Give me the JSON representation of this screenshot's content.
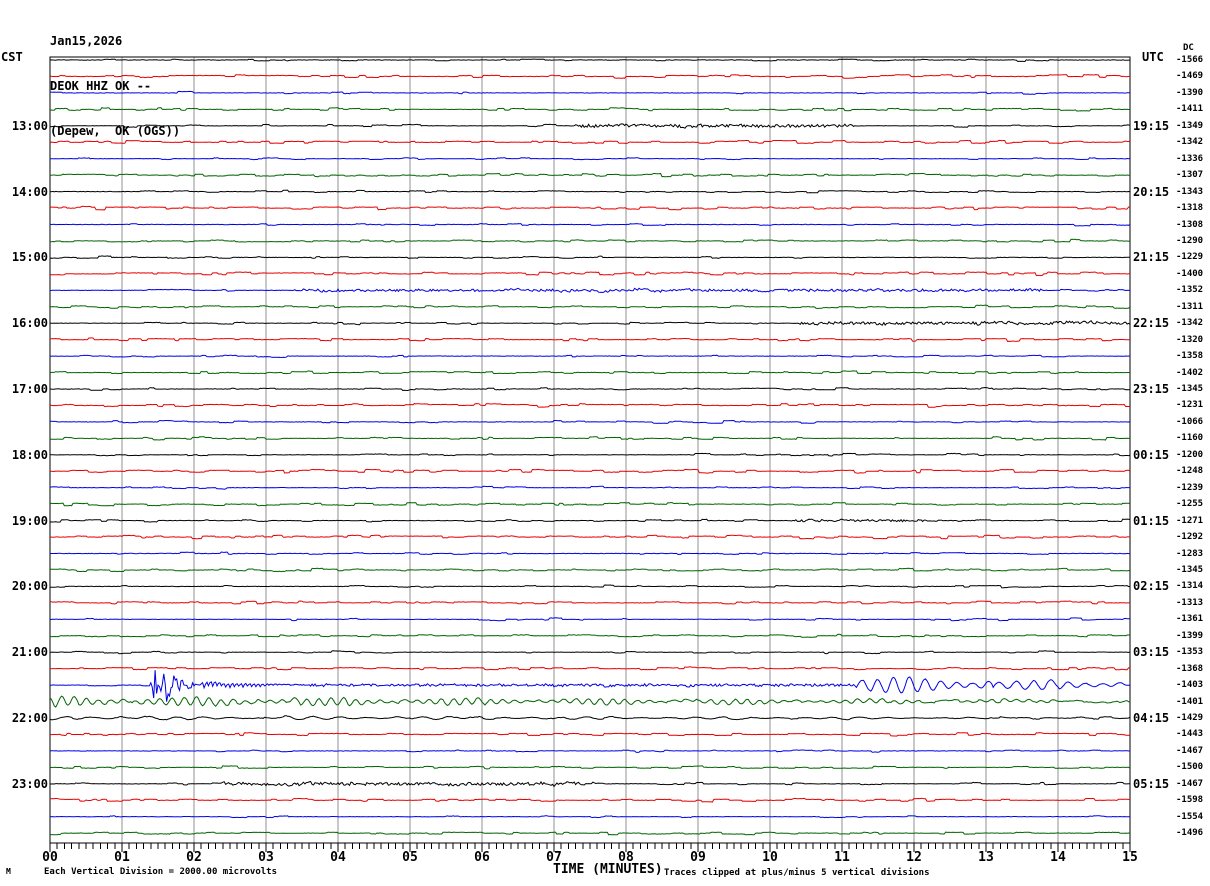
{
  "header": {
    "date": "Jan15,2026",
    "station": "DEOK HHZ OK --",
    "location": "(Depew,  OK (OGS))"
  },
  "axes": {
    "left_label": "CST",
    "right_label": "UTC",
    "dc_label": "DC",
    "x_label": "TIME (MINUTES)"
  },
  "footer": {
    "mark": "M",
    "scale_note": "Each Vertical Division = 2000.00 microvolts",
    "clip_note": "Traces clipped at plus/minus 5 vertical divisions"
  },
  "chart_data": {
    "type": "line",
    "subtype": "seismogram-helicorder",
    "title": "DEOK HHZ OK -- (Depew, OK (OGS)) Jan15,2026",
    "x_axis": {
      "label": "TIME (MINUTES)",
      "range": [
        0,
        15
      ],
      "major_tick_every_minutes": 1,
      "minor_tick_every_minutes": 0.1,
      "tick_labels": [
        "00",
        "01",
        "02",
        "03",
        "04",
        "05",
        "06",
        "07",
        "08",
        "09",
        "10",
        "11",
        "12",
        "13",
        "14",
        "15"
      ]
    },
    "left_axis": {
      "label": "CST",
      "tick_labels": [
        "13:00",
        "14:00",
        "15:00",
        "16:00",
        "17:00",
        "18:00",
        "19:00",
        "20:00",
        "21:00",
        "22:00",
        "23:00"
      ]
    },
    "right_axis": {
      "label": "UTC",
      "tick_labels": [
        "19:15",
        "20:15",
        "21:15",
        "22:15",
        "23:15",
        "00:15",
        "01:15",
        "02:15",
        "03:15",
        "04:15",
        "05:15"
      ]
    },
    "dc_header": "DC",
    "dc_values": [
      -1566,
      -1469,
      -1390,
      -1411,
      -1349,
      -1342,
      -1336,
      -1307,
      -1343,
      -1318,
      -1308,
      -1290,
      -1229,
      -1400,
      -1352,
      -1311,
      -1342,
      -1320,
      -1358,
      -1402,
      -1345,
      -1231,
      -1066,
      -1160,
      -1200,
      -1248,
      -1239,
      -1255,
      -1271,
      -1292,
      -1283,
      -1345,
      -1314,
      -1313,
      -1361,
      -1399,
      -1353,
      -1368,
      -1403,
      -1401,
      -1429,
      -1443,
      -1467,
      -1500,
      -1467,
      -1598,
      -1554,
      -1496
    ],
    "minutes_per_row": 15,
    "trace_color_cycle": [
      "black",
      "red",
      "blue",
      "green"
    ],
    "colors": {
      "black": "#000000",
      "red": "#e60000",
      "blue": "#0000e6",
      "green": "#006400",
      "grid": "#909090",
      "border": "#000000"
    },
    "grid": {
      "vertical_lines": "every 1 minute",
      "horizontal_lines": "none"
    },
    "traces": [
      {
        "start_cst": "12:00",
        "color": "black"
      },
      {
        "start_cst": "12:15",
        "color": "red"
      },
      {
        "start_cst": "12:30",
        "color": "blue"
      },
      {
        "start_cst": "12:45",
        "color": "green"
      },
      {
        "start_cst": "13:00",
        "color": "black",
        "events": [
          {
            "type": "fuzz",
            "start": 7.3,
            "end": 11.2,
            "amp": 1.6
          }
        ]
      },
      {
        "start_cst": "13:15",
        "color": "red"
      },
      {
        "start_cst": "13:30",
        "color": "blue"
      },
      {
        "start_cst": "13:45",
        "color": "green"
      },
      {
        "start_cst": "14:00",
        "color": "black"
      },
      {
        "start_cst": "14:15",
        "color": "red"
      },
      {
        "start_cst": "14:30",
        "color": "blue"
      },
      {
        "start_cst": "14:45",
        "color": "green"
      },
      {
        "start_cst": "15:00",
        "color": "black"
      },
      {
        "start_cst": "15:15",
        "color": "red"
      },
      {
        "start_cst": "15:30",
        "color": "blue",
        "events": [
          {
            "type": "fuzz",
            "start": 3.4,
            "end": 13.8,
            "amp": 1.2
          }
        ]
      },
      {
        "start_cst": "15:45",
        "color": "green"
      },
      {
        "start_cst": "16:00",
        "color": "black",
        "events": [
          {
            "type": "fuzz",
            "start": 10.4,
            "end": 15,
            "amp": 1.3
          }
        ]
      },
      {
        "start_cst": "16:15",
        "color": "red"
      },
      {
        "start_cst": "16:30",
        "color": "blue"
      },
      {
        "start_cst": "16:45",
        "color": "green"
      },
      {
        "start_cst": "17:00",
        "color": "black"
      },
      {
        "start_cst": "17:15",
        "color": "red"
      },
      {
        "start_cst": "17:30",
        "color": "blue"
      },
      {
        "start_cst": "17:45",
        "color": "green"
      },
      {
        "start_cst": "18:00",
        "color": "black"
      },
      {
        "start_cst": "18:15",
        "color": "red"
      },
      {
        "start_cst": "18:30",
        "color": "blue"
      },
      {
        "start_cst": "18:45",
        "color": "green"
      },
      {
        "start_cst": "19:00",
        "color": "black",
        "events": [
          {
            "type": "fuzz",
            "start": 10.3,
            "end": 12.4,
            "amp": 1.0
          }
        ]
      },
      {
        "start_cst": "19:15",
        "color": "red"
      },
      {
        "start_cst": "19:30",
        "color": "blue"
      },
      {
        "start_cst": "19:45",
        "color": "green"
      },
      {
        "start_cst": "20:00",
        "color": "black"
      },
      {
        "start_cst": "20:15",
        "color": "red"
      },
      {
        "start_cst": "20:30",
        "color": "blue"
      },
      {
        "start_cst": "20:45",
        "color": "green"
      },
      {
        "start_cst": "21:00",
        "color": "black"
      },
      {
        "start_cst": "21:15",
        "color": "red"
      },
      {
        "start_cst": "21:30",
        "color": "blue",
        "events": [
          {
            "type": "burst",
            "start": 1.38,
            "end": 2.1,
            "amp": 22
          },
          {
            "type": "coda",
            "start": 2.1,
            "end": 3.4,
            "amp": 4
          },
          {
            "type": "fuzz",
            "start": 3.4,
            "end": 11.2,
            "amp": 1.2
          },
          {
            "type": "osc",
            "start": 11.2,
            "end": 13.1,
            "amp": 8,
            "period": 0.22
          },
          {
            "type": "osc",
            "start": 13.1,
            "end": 14.9,
            "amp": 4.5,
            "period": 0.24
          }
        ]
      },
      {
        "start_cst": "21:45",
        "color": "green",
        "events": [
          {
            "type": "osc",
            "start": 0,
            "end": 15,
            "amp": 3.8,
            "period": 0.17,
            "decay": true
          }
        ]
      },
      {
        "start_cst": "22:00",
        "color": "black",
        "events": [
          {
            "type": "osc",
            "start": 0,
            "end": 15,
            "amp": 1.6,
            "period": 0.38,
            "decay": true
          }
        ]
      },
      {
        "start_cst": "22:15",
        "color": "red"
      },
      {
        "start_cst": "22:30",
        "color": "blue"
      },
      {
        "start_cst": "22:45",
        "color": "green"
      },
      {
        "start_cst": "23:00",
        "color": "black",
        "events": [
          {
            "type": "fuzz",
            "start": 2.4,
            "end": 7.6,
            "amp": 1.5
          }
        ]
      },
      {
        "start_cst": "23:15",
        "color": "red"
      },
      {
        "start_cst": "23:30",
        "color": "blue"
      },
      {
        "start_cst": "23:45",
        "color": "green"
      }
    ],
    "notes": {
      "scale": "Each Vertical Division = 2000.00 microvolts",
      "clipping": "Traces clipped at plus/minus 5 vertical divisions"
    }
  }
}
